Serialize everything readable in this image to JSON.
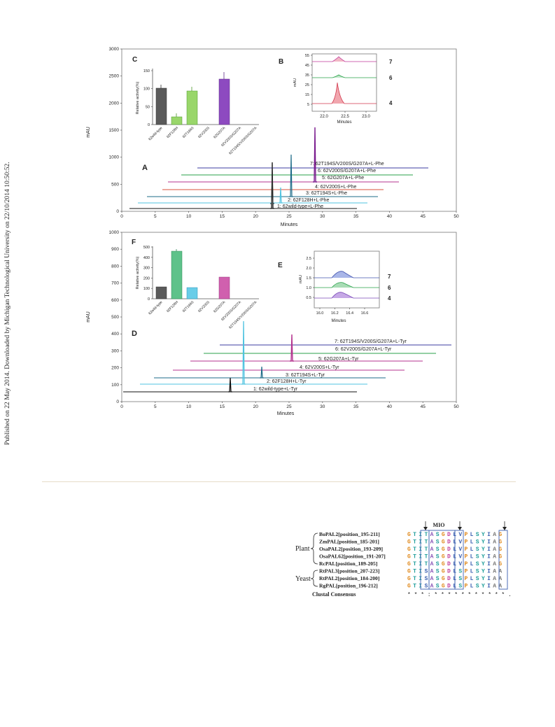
{
  "side_note": "Published on 22 May 2014. Downloaded by Michigan Technological University on 22/10/2014 10:50:52.",
  "panel_top": {
    "yticks": [
      "0",
      "500",
      "1000",
      "1500",
      "2000",
      "2500",
      "3000"
    ],
    "xticks": [
      "0",
      "5",
      "10",
      "15",
      "20",
      "25",
      "30",
      "35",
      "40",
      "45",
      "50"
    ],
    "ylabel": "mAU",
    "xlabel": "Minutes",
    "letter": "A",
    "traces": [
      {
        "label": "1: 62wild-type+L-Phe",
        "color": "#111111"
      },
      {
        "label": "2: 62F128H+L-Phe",
        "color": "#4fc3e0"
      },
      {
        "label": "3: 62T194S+L-Phe",
        "color": "#1d6b88"
      },
      {
        "label": "4: 62V200S+L-Phe",
        "color": "#d9533b"
      },
      {
        "label": "5: 62G207A+L-Phe",
        "color": "#b4338f"
      },
      {
        "label": "6: 62V200S/G207A+L-Phe",
        "color": "#2aa24a"
      },
      {
        "label": "7: 62T194S/V200S/G207A+L-Phe",
        "color": "#3d3da0"
      }
    ]
  },
  "panel_bottom": {
    "yticks": [
      "0",
      "100",
      "200",
      "300",
      "400",
      "500",
      "600",
      "700",
      "800",
      "900",
      "1000"
    ],
    "xticks": [
      "0",
      "5",
      "10",
      "15",
      "20",
      "25",
      "30",
      "35",
      "40",
      "45",
      "50"
    ],
    "ylabel": "mAU",
    "xlabel": "Minutes",
    "letter": "D",
    "traces": [
      {
        "label": "1: 62wild-type+L-Tyr",
        "color": "#111111"
      },
      {
        "label": "2: 62F128H+L-Tyr",
        "color": "#4fc3e0"
      },
      {
        "label": "3: 62T194S+L-Tyr",
        "color": "#1d6b88"
      },
      {
        "label": "4: 62V200S+L-Tyr",
        "color": "#b4338f"
      },
      {
        "label": "5: 62G207A+L-Tyr",
        "color": "#b4338f"
      },
      {
        "label": "6: 62V200S/G207A+L-Tyr",
        "color": "#2aa24a"
      },
      {
        "label": "7: 62T194S/V200S/G207A+L-Tyr",
        "color": "#3d3da0"
      }
    ]
  },
  "inset_C": {
    "letter": "C",
    "ylabel": "Relative activity(%)",
    "yticks": [
      "0",
      "50",
      "100",
      "150"
    ],
    "categories": [
      "62wild-type",
      "62F128H",
      "62T194S",
      "62V200S",
      "62G207A",
      "62V200S/G207A",
      "62T194S/V200S/G207A"
    ]
  },
  "inset_F": {
    "letter": "F",
    "ylabel": "Relative activity(%)",
    "yticks": [
      "0",
      "100",
      "200",
      "300",
      "400",
      "500"
    ],
    "categories": [
      "62wild-type",
      "62F128H",
      "62T194S",
      "62V200S",
      "62G207A",
      "62V200S/G207A",
      "62T194S/V200S/G207A"
    ]
  },
  "inset_B": {
    "letter": "B",
    "ylabel": "mAU",
    "yticks": [
      "5",
      "15",
      "25",
      "35",
      "45",
      "55"
    ],
    "xticks": [
      "22.0",
      "22.5",
      "23.0"
    ],
    "xlabel": "Minutes",
    "trace_labels": [
      "7",
      "6",
      "4"
    ]
  },
  "inset_E": {
    "letter": "E",
    "ylabel": "mAU",
    "yticks": [
      "0.5",
      "1.0",
      "1.5",
      "2.0",
      "2.5"
    ],
    "xticks": [
      "16.0",
      "16.2",
      "16.4",
      "16.6"
    ],
    "xlabel": "Minutes",
    "trace_labels": [
      "7",
      "6",
      "4"
    ]
  },
  "alignment": {
    "motif_label": "MIO",
    "group_plant": "Plant",
    "group_yeast": "Yeast",
    "consensus_label": "Clustal Consensus",
    "consensus": "* * * : * * * * *   * * * * * * .",
    "rows": [
      {
        "name": "BoPAL2[position_195-211]",
        "seq": "GTITASGDLVPLSYIAG"
      },
      {
        "name": "ZmPAL[position_185-201]",
        "seq": "GTITASGDLVPLSYIAG"
      },
      {
        "name": "OsaPAL2[position_193-209]",
        "seq": "GTITASGDLVPLSYIAG"
      },
      {
        "name": "OsaPAL62[position_191-207]",
        "seq": "GTITASGDLVPLSYIAG"
      },
      {
        "name": "RcPAL[position_189-205]",
        "seq": "GTITASGDLVPLSYIAG"
      },
      {
        "name": "RtPAL3[position_207-223]",
        "seq": "GTISASGDLSPLSYIAA"
      },
      {
        "name": "RtPAL2[position_184-200]",
        "seq": "GTISASGDLSPLSYIAA"
      },
      {
        "name": "RgPAL[position_196-212]",
        "seq": "GTISASGDLSPLSYIAA"
      }
    ]
  },
  "colors": {
    "axis": "#555555",
    "res_orange": "#e08a1e",
    "res_teal": "#1f9e9a",
    "res_blue": "#3a5fb0",
    "res_purple": "#8a57b8",
    "res_magenta": "#c0399a",
    "res_gray": "#777777",
    "bar_wt": "#5a5a5a",
    "bar_f128h": "#5ec28a",
    "bar_t194s": "#69cde8",
    "bar_g207a": "#8d4ac0",
    "bar_g207a_tyr": "#d060ae",
    "bar_g207a_phe": "#99d66a"
  }
}
